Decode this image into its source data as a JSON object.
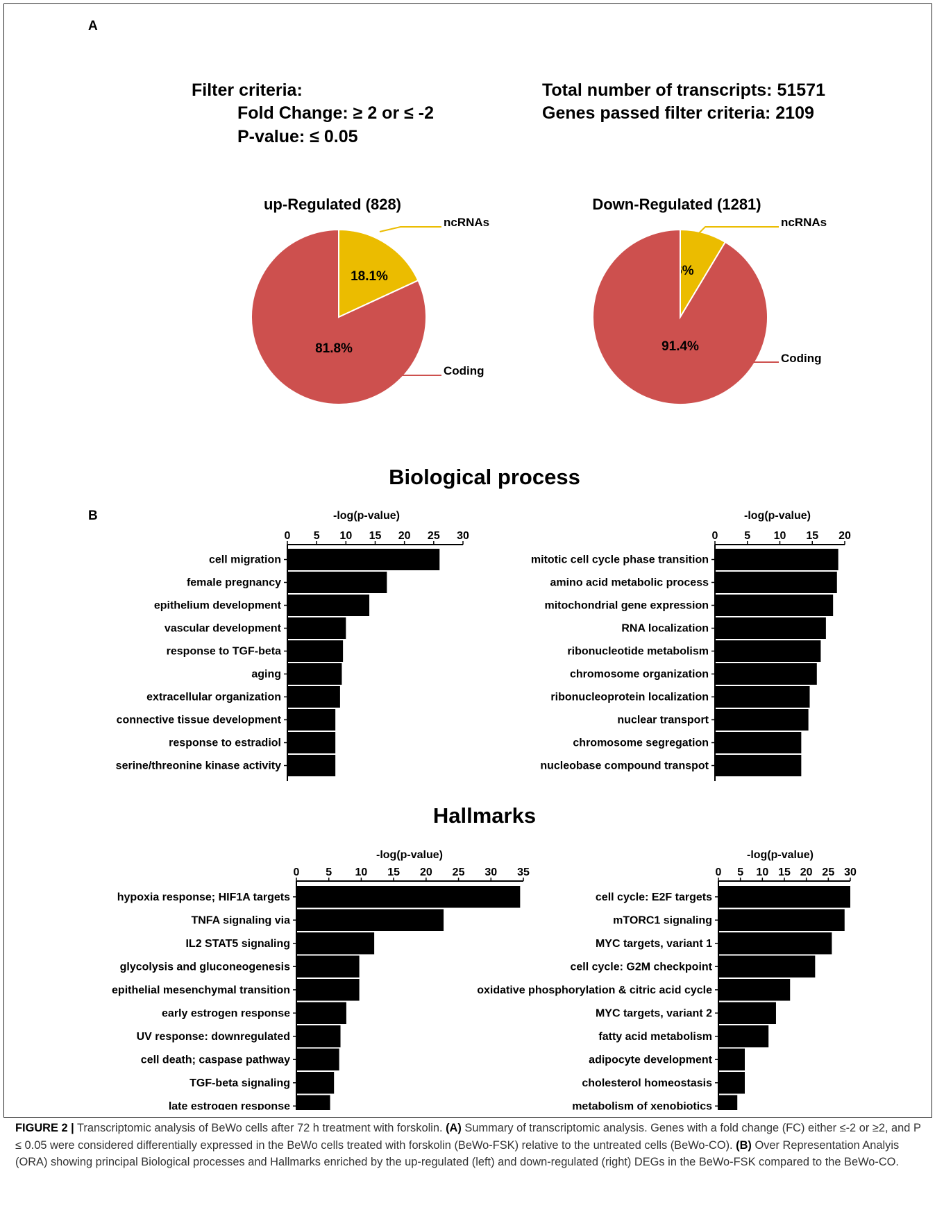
{
  "panel_labels": {
    "a": "A",
    "b": "B"
  },
  "summary": {
    "filter_title": "Filter criteria:",
    "fold_change": "Fold Change:  ≥ 2 or ≤ -2",
    "p_value": "P-value: ≤ 0.05",
    "total_transcripts": "Total number of transcripts: 51571",
    "genes_passed": "Genes passed filter criteria: 2109"
  },
  "section_titles": {
    "bio": "Biological process",
    "hall": "Hallmarks"
  },
  "colors": {
    "coding": "#cd504e",
    "ncrna": "#ebbc00",
    "bar": "#000000",
    "leader_coding": "#cd504e",
    "leader_ncrna": "#ebbc00"
  },
  "chart_data": [
    {
      "type": "pie",
      "title": "up-Regulated (828)",
      "slices": [
        {
          "label": "ncRNAs",
          "value": 18.1,
          "text": "18.1%"
        },
        {
          "label": "Coding",
          "value": 81.8,
          "text": "81.8%"
        }
      ]
    },
    {
      "type": "pie",
      "title": "Down-Regulated (1281)",
      "slices": [
        {
          "label": "ncRNAs",
          "value": 8.6,
          "text": "8.6%"
        },
        {
          "label": "Coding",
          "value": 91.4,
          "text": "91.4%"
        }
      ]
    },
    {
      "type": "bar",
      "orientation": "horizontal",
      "xlabel": "-log(p-value)",
      "xlim": [
        0,
        30
      ],
      "ticks": [
        0,
        5,
        10,
        15,
        20,
        25,
        30
      ],
      "categories": [
        "cell migration",
        "female pregnancy",
        "epithelium development",
        "vascular development",
        "response to TGF-beta",
        "aging",
        "extracellular organization",
        "connective tissue development",
        "response to estradiol",
        "serine/threonine kinase activity"
      ],
      "values": [
        26,
        17,
        14,
        10,
        9.5,
        9.3,
        9,
        8.2,
        8.2,
        8.2
      ]
    },
    {
      "type": "bar",
      "orientation": "horizontal",
      "xlabel": "-log(p-value)",
      "xlim": [
        0,
        20
      ],
      "ticks": [
        0,
        5,
        10,
        15,
        20
      ],
      "categories": [
        "mitotic cell cycle phase transition",
        "amino acid metabolic process",
        "mitochondrial gene expression",
        "RNA localization",
        "ribonucleotide metabolism",
        "chromosome organization",
        "ribonucleoprotein localization",
        "nuclear transport",
        "chromosome segregation",
        "nucleobase  compound transpot"
      ],
      "values": [
        19,
        18.8,
        18.2,
        17.1,
        16.3,
        15.7,
        14.6,
        14.4,
        13.3,
        13.3
      ]
    },
    {
      "type": "bar",
      "orientation": "horizontal",
      "xlabel": "-log(p-value)",
      "xlim": [
        0,
        35
      ],
      "ticks": [
        0,
        5,
        10,
        15,
        20,
        25,
        30,
        35
      ],
      "categories": [
        "hypoxia response; HIF1A targets",
        "TNFA signaling via",
        "IL2 STAT5 signaling",
        "glycolysis and gluconeogenesis",
        "epithelial mesenchymal transition",
        "early estrogen response",
        "UV response: downregulated",
        "cell death; caspase pathway",
        "TGF-beta signaling",
        "late estrogen response"
      ],
      "values": [
        34.5,
        22.7,
        12,
        9.7,
        9.7,
        7.7,
        6.8,
        6.6,
        5.8,
        5.2
      ]
    },
    {
      "type": "bar",
      "orientation": "horizontal",
      "xlabel": "-log(p-value)",
      "xlim": [
        0,
        30
      ],
      "ticks": [
        0,
        5,
        10,
        15,
        20,
        25,
        30
      ],
      "categories": [
        "cell cycle: E2F targets",
        "mTORC1 signaling",
        "MYC targets, variant 1",
        "cell cycle: G2M checkpoint",
        "oxidative phosphorylation & citric acid cycle",
        "MYC targets, variant 2",
        "fatty acid metabolism",
        "adipocyte development",
        "cholesterol homeostasis",
        "metabolism of xenobiotics"
      ],
      "values": [
        30,
        28.7,
        25.8,
        22,
        16.3,
        13.1,
        11.4,
        6,
        6,
        4.3
      ]
    }
  ],
  "caption": {
    "label": "FIGURE 2 |",
    "intro": " Transcriptomic analysis of BeWo cells after 72 h treatment with forskolin. ",
    "a_label": "(A)",
    "a_text": " Summary of transcriptomic analysis. Genes with a fold change (FC) either ≤-2 or ≥2, and P ≤ 0.05 were considered differentially expressed in the BeWo cells treated with forskolin (BeWo-FSK) relative to the untreated cells (BeWo-CO). ",
    "b_label": "(B)",
    "b_text": " Over Representation Analyis (ORA) showing principal Biological processes and Hallmarks enriched by the up-regulated (left) and down-regulated (right) DEGs in the BeWo-FSK compared to the BeWo-CO."
  }
}
